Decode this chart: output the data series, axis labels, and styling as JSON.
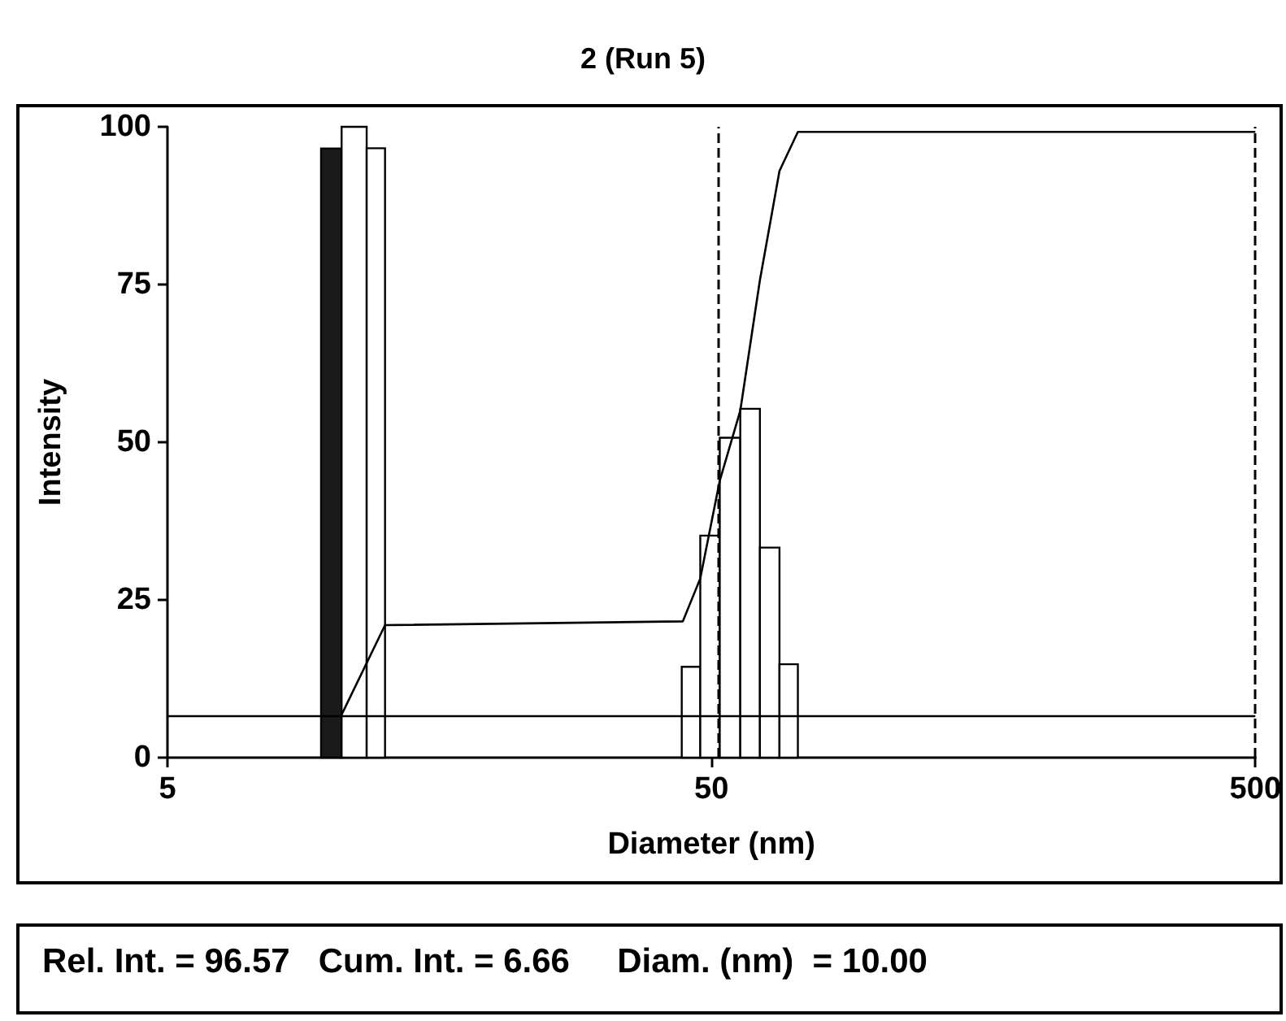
{
  "chart_data": {
    "type": "histogram",
    "title": "2 (Run 5)",
    "xlabel": "Diameter (nm)",
    "ylabel": "Intensity",
    "bins": [
      9.58,
      10.45,
      11.62,
      12.56,
      44.1,
      47.7,
      51.8,
      56.5,
      61.4,
      66.7,
      72.1
    ],
    "values": [
      96.57,
      100,
      96.6,
      0,
      14.4,
      35.2,
      50.7,
      55.3,
      33.3,
      14.8
    ],
    "colors": [
      "#1a1a1a",
      "#ffffff",
      "#ffffff",
      null,
      "#ffffff",
      "#ffffff",
      "#ffffff",
      "#ffffff",
      "#ffffff",
      "#ffffff"
    ],
    "series": [
      {
        "type": "line",
        "color": "#000000",
        "x": [
          10.43,
          12.56,
          44.3,
          47.7,
          51.8,
          56.5,
          61.4,
          66.7,
          72.1,
          500
        ],
        "values": [
          6.66,
          21.0,
          21.6,
          28.4,
          43.9,
          55,
          75.7,
          93,
          99.2,
          99.2
        ]
      }
    ],
    "log": "x",
    "xlim": [
      5,
      500
    ],
    "xticks": [
      5,
      50,
      500
    ],
    "ylim": [
      0,
      100
    ],
    "yticks": [
      0,
      25,
      50,
      75,
      100
    ],
    "grid": false,
    "ref_lines": [
      {
        "axis": "y",
        "value": 6.66,
        "color": "#000000",
        "line_style": "solid"
      },
      {
        "axis": "x",
        "value": 51.3,
        "color": "#000000",
        "line_style": "dashed"
      },
      {
        "axis": "x",
        "value": 500,
        "color": "#000000",
        "line_style": "dashed"
      }
    ],
    "annotations": [
      "Rel. Int. = 96.57   Cum. Int. = 6.66     Diam. (nm)  = 10.00"
    ]
  }
}
